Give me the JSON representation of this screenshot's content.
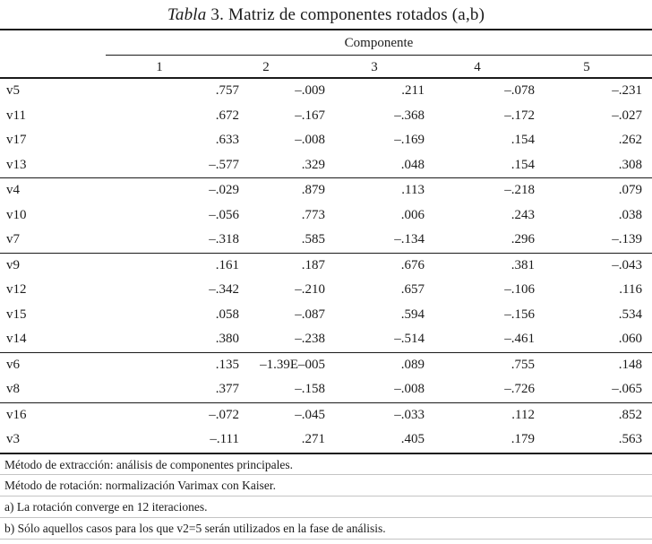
{
  "title": {
    "word_italic": "Tabla",
    "rest": "3. Matriz de componentes rotados (a,b)"
  },
  "table": {
    "group_header": "Componente",
    "columns": [
      "1",
      "2",
      "3",
      "4",
      "5"
    ],
    "groups": [
      {
        "rows": [
          {
            "var": "v5",
            "values": [
              ".757",
              "–.009",
              ".211",
              "–.078",
              "–.231"
            ]
          },
          {
            "var": "v11",
            "values": [
              ".672",
              "–.167",
              "–.368",
              "–.172",
              "–.027"
            ]
          },
          {
            "var": "v17",
            "values": [
              ".633",
              "–.008",
              "–.169",
              ".154",
              ".262"
            ]
          },
          {
            "var": "v13",
            "values": [
              "–.577",
              ".329",
              ".048",
              ".154",
              ".308"
            ]
          }
        ]
      },
      {
        "rows": [
          {
            "var": "v4",
            "values": [
              "–.029",
              ".879",
              ".113",
              "–.218",
              ".079"
            ]
          },
          {
            "var": "v10",
            "values": [
              "–.056",
              ".773",
              ".006",
              ".243",
              ".038"
            ]
          },
          {
            "var": "v7",
            "values": [
              "–.318",
              ".585",
              "–.134",
              ".296",
              "–.139"
            ]
          }
        ]
      },
      {
        "rows": [
          {
            "var": "v9",
            "values": [
              ".161",
              ".187",
              ".676",
              ".381",
              "–.043"
            ]
          },
          {
            "var": "v12",
            "values": [
              "–.342",
              "–.210",
              ".657",
              "–.106",
              ".116"
            ]
          },
          {
            "var": "v15",
            "values": [
              ".058",
              "–.087",
              ".594",
              "–.156",
              ".534"
            ]
          },
          {
            "var": "v14",
            "values": [
              ".380",
              "–.238",
              "–.514",
              "–.461",
              ".060"
            ]
          }
        ]
      },
      {
        "rows": [
          {
            "var": "v6",
            "values": [
              ".135",
              "–1.39E–005",
              ".089",
              ".755",
              ".148"
            ]
          },
          {
            "var": "v8",
            "values": [
              ".377",
              "–.158",
              "–.008",
              "–.726",
              "–.065"
            ]
          }
        ]
      },
      {
        "rows": [
          {
            "var": "v16",
            "values": [
              "–.072",
              "–.045",
              "–.033",
              ".112",
              ".852"
            ]
          },
          {
            "var": "v3",
            "values": [
              "–.111",
              ".271",
              ".405",
              ".179",
              ".563"
            ]
          }
        ]
      }
    ],
    "footnotes": [
      "Método de extracción: análisis de componentes principales.",
      "Método de rotación: normalización Varimax con Kaiser.",
      "a) La rotación converge en 12 iteraciones.",
      "b) Sólo aquellos casos para los que v2=5 serán utilizados en la fase de análisis."
    ]
  }
}
